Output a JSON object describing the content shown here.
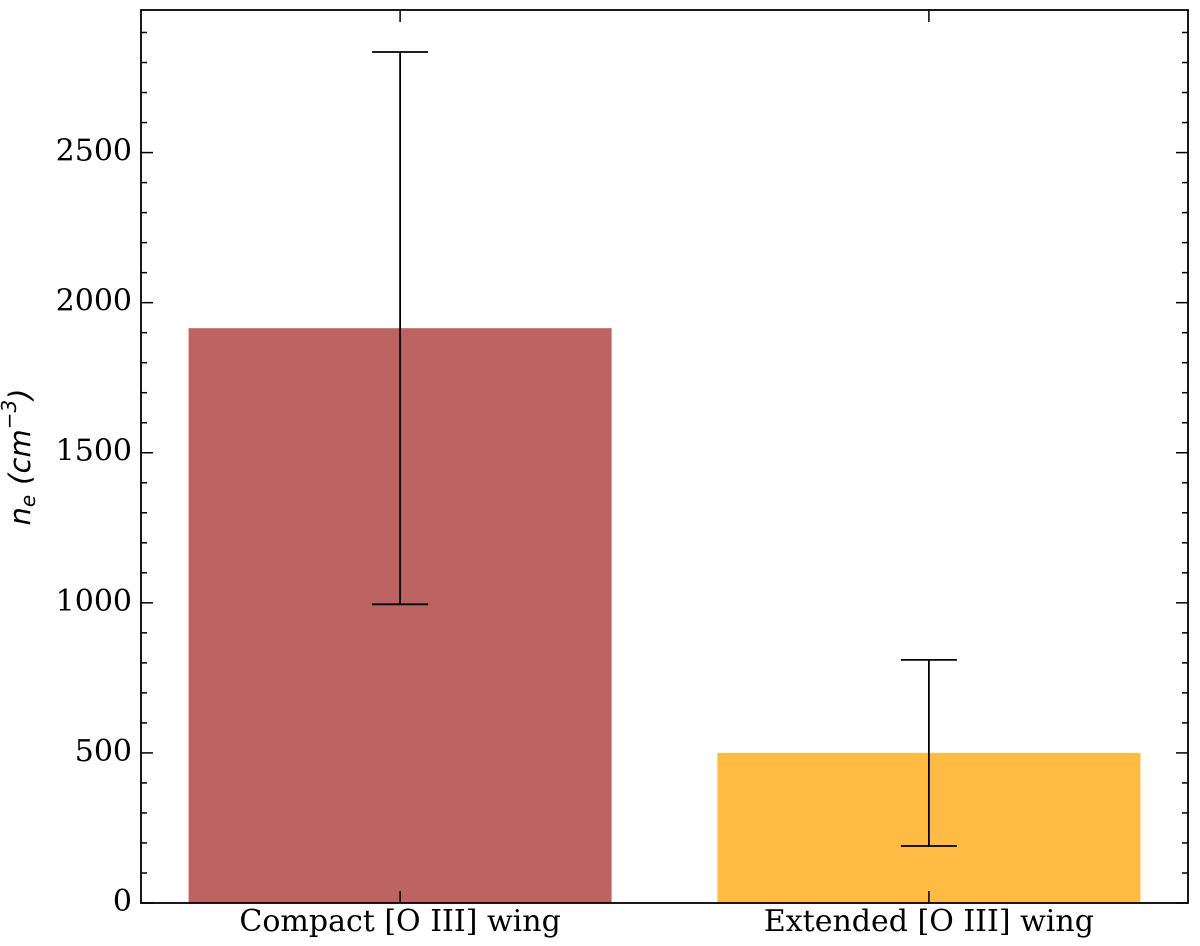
{
  "chart_data": {
    "type": "bar",
    "categories": [
      "Compact [O III] wing",
      "Extended [O III] wing"
    ],
    "series": [
      {
        "values": [
          1915,
          500
        ],
        "errors": [
          920,
          310
        ],
        "colors": [
          "#bd6462",
          "#ffbb44"
        ]
      }
    ],
    "y_label_parts": [
      "n",
      "e",
      "(cm",
      "−3",
      ")"
    ],
    "ylim": [
      0,
      2975
    ],
    "yticks": [
      0,
      500,
      1000,
      1500,
      2000,
      2500
    ],
    "yminor_ticks": [
      100,
      200,
      300,
      400,
      600,
      700,
      800,
      900,
      1100,
      1200,
      1300,
      1400,
      1600,
      1700,
      1800,
      1900,
      2100,
      2200,
      2300,
      2400,
      2600,
      2700,
      2800,
      2900
    ],
    "error_color": "#000000"
  }
}
